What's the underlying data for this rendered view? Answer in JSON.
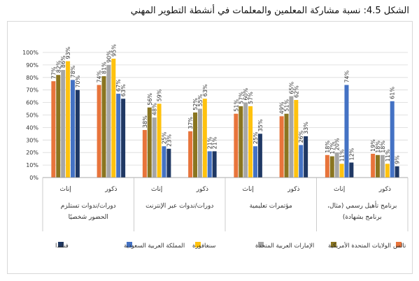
{
  "chart_data": {
    "type": "bar",
    "title": "الشكل 4.5: نسبة مشاركة المعلمين والمعلمات في أنشطة التطوير المهني",
    "ylim": [
      0,
      100
    ],
    "yticks": [
      "0%",
      "10%",
      "20%",
      "30%",
      "40%",
      "50%",
      "60%",
      "70%",
      "80%",
      "90%",
      "100%"
    ],
    "grid": true,
    "legend_position": "bottom",
    "groups": [
      {
        "label": "دورات/ندوات تستلزم الحضور شخصيًا",
        "subgroups": [
          "إناث",
          "ذكور"
        ]
      },
      {
        "label": "دورات/ندوات عبر الإنترنت",
        "subgroups": [
          "إناث",
          "ذكور"
        ]
      },
      {
        "label": "مؤتمرات تعليمية",
        "subgroups": [
          "إناث",
          "ذكور"
        ]
      },
      {
        "label": "برنامج تأهيل رسمي (مثال، برنامج بشهادة)",
        "subgroups": [
          "إناث",
          "ذكور"
        ]
      }
    ],
    "series": [
      {
        "name": "تالس",
        "color": "#E8743B",
        "values": [
          77,
          74,
          38,
          37,
          51,
          49,
          18,
          19
        ]
      },
      {
        "name": "الولايات المتحدة الأمريكية",
        "color": "#8A7520",
        "values": [
          82,
          81,
          56,
          52,
          57,
          51,
          17,
          18
        ]
      },
      {
        "name": "الإمارات العربية المتحدة",
        "color": "#A6A6A6",
        "values": [
          86,
          90,
          48,
          55,
          60,
          65,
          20,
          18
        ]
      },
      {
        "name": "سنغافورة",
        "color": "#FFC20E",
        "values": [
          93,
          95,
          59,
          63,
          57,
          62,
          11,
          11
        ]
      },
      {
        "name": "المملكة العربية السعودية",
        "color": "#4472C4",
        "values": [
          78,
          67,
          25,
          21,
          25,
          26,
          74,
          61
        ]
      },
      {
        "name": "فنلندا",
        "color": "#1F3864",
        "values": [
          70,
          63,
          23,
          21,
          35,
          33,
          12,
          9
        ]
      }
    ]
  }
}
